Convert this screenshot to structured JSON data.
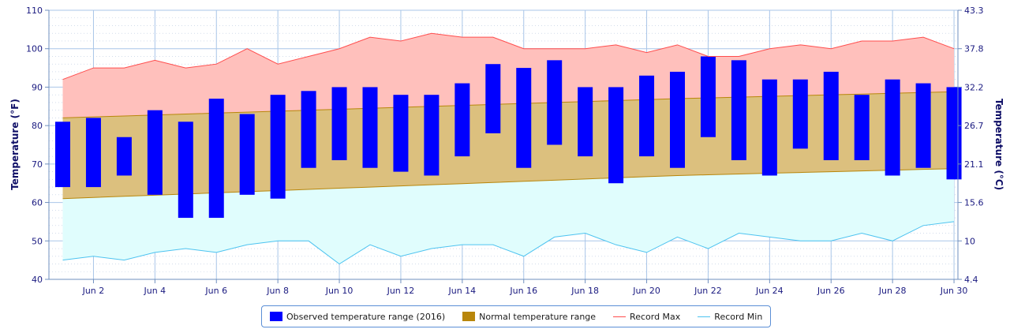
{
  "chart_data": {
    "type": "bar",
    "title": "",
    "xlabel": "",
    "ylabel": "Temperature (°F)",
    "ylabel_right": "Temperature (°C)",
    "ylim": [
      40,
      110
    ],
    "yticks": [
      40,
      50,
      60,
      70,
      80,
      90,
      100,
      110
    ],
    "yticks_right": [
      "4.4",
      "10",
      "15.6",
      "21.1",
      "26.7",
      "32.2",
      "37.8",
      "43.3"
    ],
    "x": [
      1,
      2,
      3,
      4,
      5,
      6,
      7,
      8,
      9,
      10,
      11,
      12,
      13,
      14,
      15,
      16,
      17,
      18,
      19,
      20,
      21,
      22,
      23,
      24,
      25,
      26,
      27,
      28,
      29,
      30
    ],
    "xtick_labels": [
      "Jun 2",
      "Jun 4",
      "Jun 6",
      "Jun 8",
      "Jun 10",
      "Jun 12",
      "Jun 14",
      "Jun 16",
      "Jun 18",
      "Jun 20",
      "Jun 22",
      "Jun 24",
      "Jun 26",
      "Jun 28",
      "Jun 30"
    ],
    "grid": true,
    "legend_position": "bottom-center",
    "series": [
      {
        "name": "Observed temperature range (2016)",
        "kind": "floating-bar",
        "color": "#0000ff",
        "low": [
          64,
          64,
          67,
          62,
          56,
          56,
          62,
          61,
          69,
          71,
          69,
          68,
          67,
          72,
          78,
          69,
          75,
          72,
          65,
          72,
          69,
          77,
          71,
          67,
          74,
          71,
          71,
          67,
          69,
          66
        ],
        "high": [
          81,
          82,
          77,
          84,
          81,
          87,
          83,
          88,
          89,
          90,
          90,
          88,
          88,
          91,
          96,
          95,
          97,
          90,
          90,
          93,
          94,
          98,
          97,
          92,
          92,
          94,
          88,
          92,
          91,
          90
        ]
      },
      {
        "name": "Normal temperature range",
        "kind": "band",
        "color": "#b8860b",
        "fill": "#dcc07e",
        "low": [
          61,
          61.3,
          61.6,
          61.9,
          62.2,
          62.5,
          62.8,
          63.1,
          63.4,
          63.7,
          64,
          64.3,
          64.6,
          64.9,
          65.2,
          65.5,
          65.8,
          66.1,
          66.4,
          66.7,
          67,
          67.2,
          67.4,
          67.6,
          67.8,
          68,
          68.2,
          68.4,
          68.6,
          68.8
        ],
        "high": [
          82,
          82.25,
          82.5,
          82.75,
          83,
          83.25,
          83.5,
          83.75,
          84,
          84.25,
          84.5,
          84.75,
          85,
          85.25,
          85.5,
          85.75,
          86,
          86.25,
          86.5,
          86.75,
          87,
          87.2,
          87.4,
          87.6,
          87.8,
          88,
          88.2,
          88.4,
          88.6,
          88.8
        ]
      },
      {
        "name": "Record Max",
        "kind": "line",
        "color": "#ff4d4d",
        "fill": "#ffc0bc",
        "values": [
          92,
          95,
          95,
          97,
          95,
          96,
          100,
          96,
          98,
          100,
          103,
          102,
          104,
          103,
          103,
          100,
          100,
          100,
          101,
          99,
          101,
          98,
          98,
          100,
          101,
          100,
          102,
          102,
          103,
          100
        ]
      },
      {
        "name": "Record Min",
        "kind": "line",
        "color": "#4dc3f0",
        "fill": "#e0fdfd",
        "values": [
          45,
          46,
          45,
          47,
          48,
          47,
          49,
          50,
          50,
          44,
          49,
          46,
          48,
          49,
          49,
          46,
          51,
          52,
          49,
          47,
          51,
          48,
          52,
          51,
          50,
          50,
          52,
          50,
          54,
          55
        ]
      }
    ]
  }
}
